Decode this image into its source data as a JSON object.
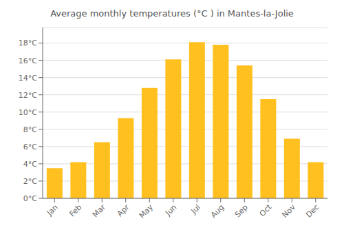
{
  "chart_data": {
    "type": "bar",
    "title": "Average monthly temperatures (°C ) in Mantes-la-Jolie",
    "categories": [
      "Jan",
      "Feb",
      "Mar",
      "Apr",
      "May",
      "Jun",
      "Jul",
      "Aug",
      "Sep",
      "Oct",
      "Nov",
      "Dec"
    ],
    "values": [
      3.5,
      4.2,
      6.5,
      9.3,
      12.8,
      16.1,
      18.1,
      17.8,
      15.4,
      11.5,
      6.9,
      4.2
    ],
    "color": "#FFC020",
    "ylim": [
      0,
      19.8
    ],
    "yticks": [
      {
        "value": 0,
        "label": "0°C"
      },
      {
        "value": 2,
        "label": "2°C"
      },
      {
        "value": 4,
        "label": "4°C"
      },
      {
        "value": 6,
        "label": "6°C"
      },
      {
        "value": 8,
        "label": "8°C"
      },
      {
        "value": 10,
        "label": "10°C"
      },
      {
        "value": 12,
        "label": "12°C"
      },
      {
        "value": 14,
        "label": "14°C"
      },
      {
        "value": 16,
        "label": "16°C"
      },
      {
        "value": 18,
        "label": "18°C"
      }
    ],
    "grid": true
  }
}
